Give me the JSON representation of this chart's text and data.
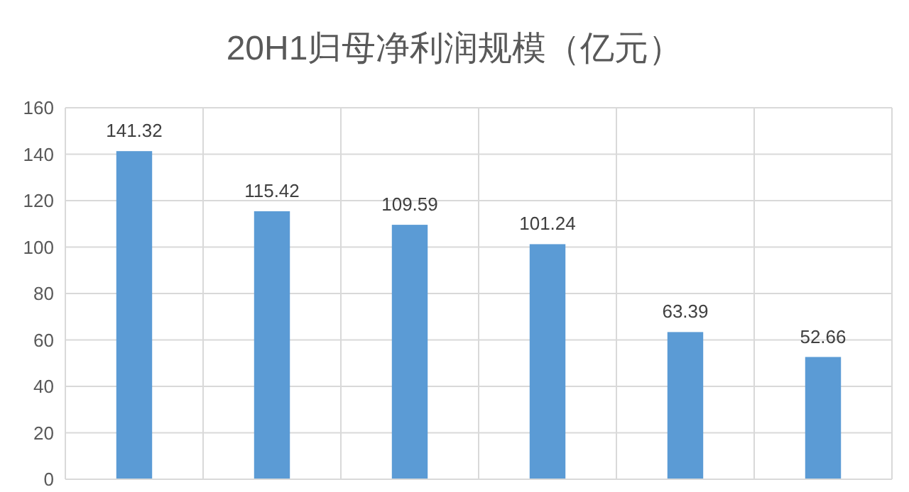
{
  "chart_data": {
    "type": "bar",
    "title": "20H1归母净利润规模（亿元）",
    "categories": [
      null,
      null,
      null,
      null,
      null,
      null
    ],
    "values": [
      141.32,
      115.42,
      109.59,
      101.24,
      63.39,
      52.66
    ],
    "color": "#5b9bd5",
    "ylim": [
      0,
      160
    ],
    "yticks": [
      0,
      20,
      40,
      60,
      80,
      100,
      120,
      140,
      160
    ],
    "grid": true,
    "data_labels": true,
    "tick_labels": "y"
  }
}
